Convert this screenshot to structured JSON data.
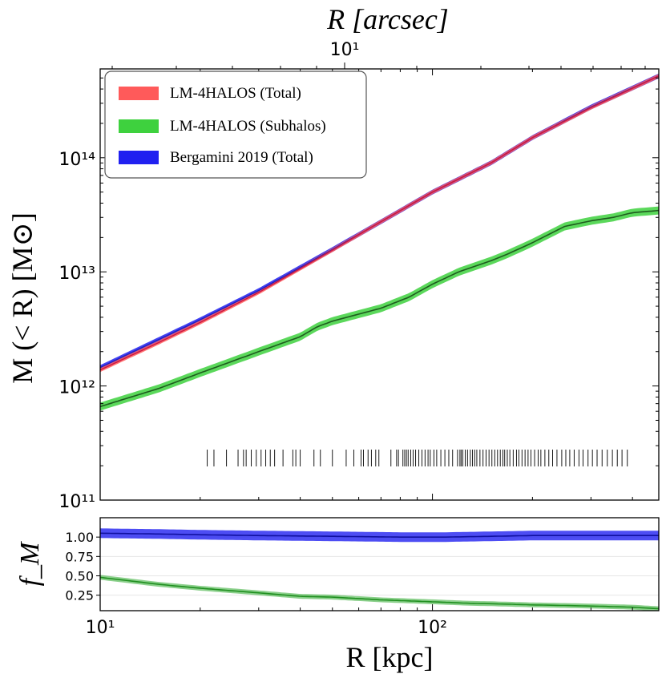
{
  "chart_data": [
    {
      "type": "line",
      "panel": "main",
      "xlabel": "R [kpc]",
      "ylabel": "M (< R) [M⊙]",
      "top_xlabel": "R [arcsec]",
      "x_scale": "log",
      "y_scale": "log",
      "xlim": [
        10,
        480
      ],
      "ylim": [
        100000000000.0,
        600000000000000.0
      ],
      "x_ticks": [
        {
          "value": 10,
          "label": "10¹"
        },
        {
          "value": 100,
          "label": "10²"
        }
      ],
      "y_ticks": [
        {
          "value": 100000000000.0,
          "label": "10¹¹"
        },
        {
          "value": 1000000000000.0,
          "label": "10¹²"
        },
        {
          "value": 10000000000000.0,
          "label": "10¹³"
        },
        {
          "value": 100000000000000.0,
          "label": "10¹⁴"
        }
      ],
      "top_x_ticks": [
        {
          "value": 10,
          "label": "10¹"
        }
      ],
      "legend_position": "top-left",
      "series": [
        {
          "name": "LM-4HALOS (Total)",
          "color": "#ff5a5a",
          "x": [
            10,
            15,
            20,
            30,
            50,
            70,
            100,
            150,
            200,
            300,
            480
          ],
          "y": [
            1380000000000.0,
            2400000000000.0,
            3600000000000.0,
            6600000000000.0,
            15500000000000.0,
            27500000000000.0,
            50000000000000.0,
            90000000000000.0,
            150000000000000.0,
            275000000000000.0,
            520000000000000.0
          ]
        },
        {
          "name": "LM-4HALOS (Subhalos)",
          "color": "#3ed13e",
          "x": [
            10,
            15,
            20,
            30,
            40,
            45,
            50,
            70,
            85,
            100,
            120,
            150,
            170,
            200,
            250,
            300,
            350,
            400,
            480
          ],
          "y": [
            660000000000.0,
            950000000000.0,
            1300000000000.0,
            2000000000000.0,
            2700000000000.0,
            3300000000000.0,
            3700000000000.0,
            4800000000000.0,
            6000000000000.0,
            7800000000000.0,
            10000000000000.0,
            12500000000000.0,
            14500000000000.0,
            18000000000000.0,
            25000000000000.0,
            28000000000000.0,
            30000000000000.0,
            33000000000000.0,
            34500000000000.0
          ]
        },
        {
          "name": "Bergamini 2019 (Total)",
          "color": "#2020f0",
          "x": [
            10,
            15,
            20,
            30,
            50,
            70,
            100,
            150,
            200,
            300,
            480
          ],
          "y": [
            1450000000000.0,
            2550000000000.0,
            3800000000000.0,
            6850000000000.0,
            15700000000000.0,
            27500000000000.0,
            50000000000000.0,
            90000000000000.0,
            150000000000000.0,
            278000000000000.0,
            520000000000000.0
          ]
        }
      ],
      "rug_x": [
        21,
        22,
        24,
        26,
        27,
        27.5,
        28.5,
        29.5,
        30.5,
        31.5,
        32.5,
        33.5,
        35.5,
        38,
        38.8,
        40,
        44,
        46,
        50,
        55,
        58,
        61,
        62,
        64,
        65.5,
        67.5,
        69,
        75,
        78,
        79,
        81.5,
        82.5,
        83.5,
        84.5,
        86,
        87.5,
        89,
        91,
        93,
        95,
        97,
        98.5,
        101,
        103,
        106,
        109,
        112,
        115,
        119,
        121,
        122,
        123.5,
        125.5,
        127.5,
        130,
        132,
        134,
        136,
        139,
        142,
        145,
        148,
        151,
        154,
        157,
        160,
        163,
        165,
        168,
        171,
        175,
        179,
        182,
        186,
        190,
        194,
        198,
        203,
        208,
        212,
        218,
        224,
        230,
        237,
        245,
        252,
        259,
        267,
        276,
        284,
        294,
        303,
        313,
        324,
        336,
        348,
        360,
        372,
        386
      ]
    },
    {
      "type": "line",
      "panel": "ratio",
      "xlabel": "R [kpc]",
      "ylabel": "f_M",
      "x_scale": "log",
      "xlim": [
        10,
        480
      ],
      "ylim": [
        0.05,
        1.25
      ],
      "x_ticks": [
        {
          "value": 10,
          "label": "10¹"
        },
        {
          "value": 100,
          "label": "10²"
        }
      ],
      "y_ticks": [
        {
          "value": 0.25,
          "label": "0.25"
        },
        {
          "value": 0.5,
          "label": "0.50"
        },
        {
          "value": 0.75,
          "label": "0.75"
        },
        {
          "value": 1.0,
          "label": "1.00"
        }
      ],
      "series": [
        {
          "name": "",
          "color": "#2020f0",
          "x": [
            10,
            15,
            20,
            30,
            50,
            80,
            110,
            150,
            200,
            300,
            480
          ],
          "y": [
            1.05,
            1.04,
            1.03,
            1.02,
            1.01,
            1.0,
            1.0,
            1.01,
            1.02,
            1.02,
            1.02
          ]
        },
        {
          "name": "",
          "color": "#2aa82a",
          "x": [
            10,
            12,
            15,
            20,
            30,
            40,
            50,
            70,
            100,
            130,
            150,
            200,
            300,
            400,
            480
          ],
          "y": [
            0.48,
            0.44,
            0.39,
            0.34,
            0.28,
            0.235,
            0.225,
            0.19,
            0.165,
            0.145,
            0.14,
            0.125,
            0.11,
            0.095,
            0.075
          ]
        }
      ]
    }
  ]
}
